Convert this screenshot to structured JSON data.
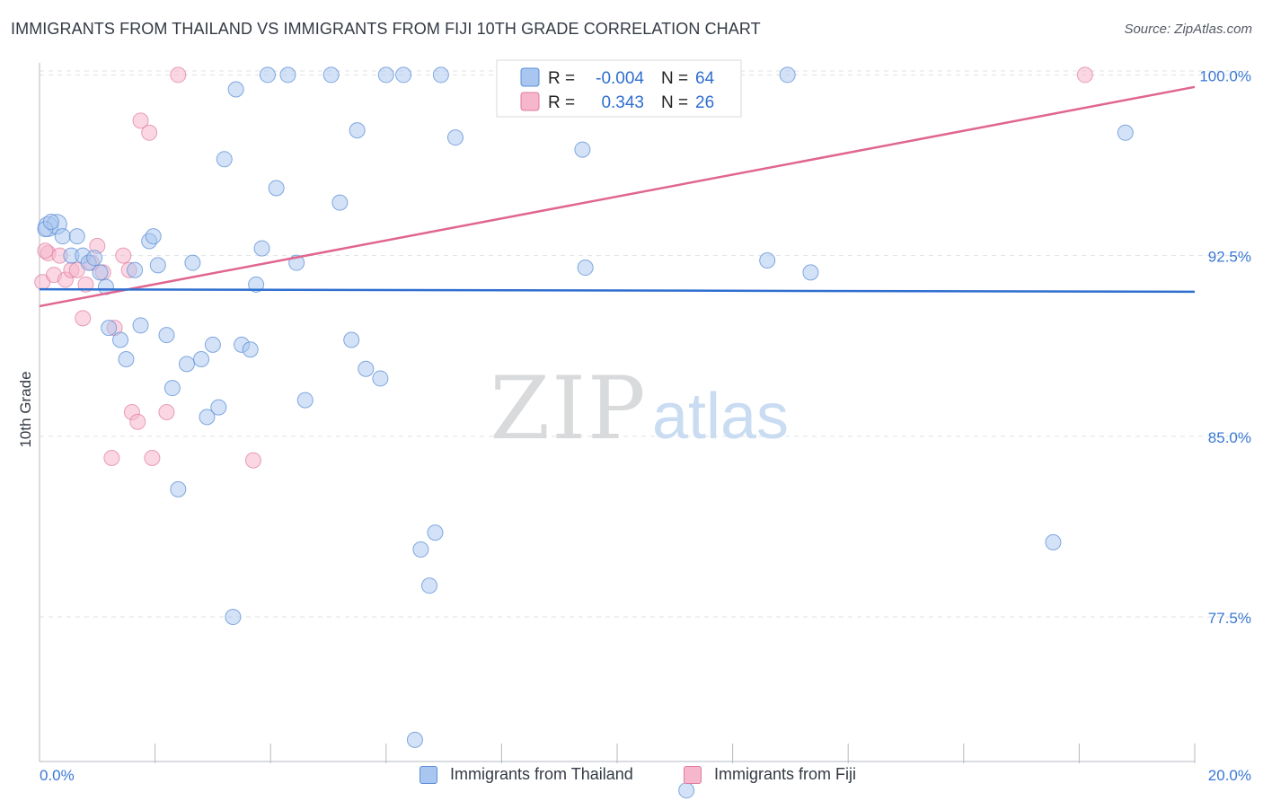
{
  "header": {
    "title": "IMMIGRANTS FROM THAILAND VS IMMIGRANTS FROM FIJI 10TH GRADE CORRELATION CHART",
    "source": "Source: ZipAtlas.com"
  },
  "watermark": {
    "zip": "ZIP",
    "atlas": "atlas"
  },
  "colors": {
    "thailand_fill": "#a9c6f0",
    "thailand_stroke": "#5b8fd6",
    "thailand_line": "#2f6fcf",
    "fiji_fill": "#f6b6cb",
    "fiji_stroke": "#e07aa0",
    "fiji_line": "#e0658f",
    "axis_label": "#3a78d4",
    "grid": "#dde1e6"
  },
  "legend_stats": {
    "r_label": "R =",
    "n_label": "N =",
    "thailand_r": "-0.004",
    "thailand_n": "64",
    "fiji_r": "0.343",
    "fiji_n": "26"
  },
  "chart_data": {
    "type": "scatter",
    "title": "IMMIGRANTS FROM THAILAND VS IMMIGRANTS FROM FIJI 10TH GRADE CORRELATION CHART",
    "xlabel": "",
    "ylabel": "10th Grade",
    "xlim": [
      0,
      20
    ],
    "ylim": [
      71.5,
      100.5
    ],
    "x_tick_labels": [
      "0.0%",
      "20.0%"
    ],
    "y_ticks": [
      77.5,
      85.0,
      92.5,
      100.0
    ],
    "y_tick_labels": [
      "77.5%",
      "85.0%",
      "92.5%",
      "100.0%"
    ],
    "grid": true,
    "legend_position": "top-center",
    "series": [
      {
        "name": "Immigrants from Thailand",
        "trend": {
          "x": [
            0,
            20
          ],
          "y": [
            91.1,
            91.0
          ]
        },
        "points": [
          {
            "x": 0.15,
            "y": 93.7
          },
          {
            "x": 0.3,
            "y": 93.8
          },
          {
            "x": 0.4,
            "y": 93.3
          },
          {
            "x": 0.55,
            "y": 92.5
          },
          {
            "x": 0.65,
            "y": 93.3
          },
          {
            "x": 0.75,
            "y": 92.5
          },
          {
            "x": 0.85,
            "y": 92.2
          },
          {
            "x": 0.95,
            "y": 92.4
          },
          {
            "x": 1.05,
            "y": 91.8
          },
          {
            "x": 1.15,
            "y": 91.2
          },
          {
            "x": 1.2,
            "y": 89.5
          },
          {
            "x": 1.4,
            "y": 89.0
          },
          {
            "x": 1.5,
            "y": 88.2
          },
          {
            "x": 1.65,
            "y": 91.9
          },
          {
            "x": 1.75,
            "y": 89.6
          },
          {
            "x": 1.9,
            "y": 93.1
          },
          {
            "x": 1.97,
            "y": 93.3
          },
          {
            "x": 2.05,
            "y": 92.1
          },
          {
            "x": 2.2,
            "y": 89.2
          },
          {
            "x": 2.3,
            "y": 87.0
          },
          {
            "x": 2.4,
            "y": 82.8
          },
          {
            "x": 2.55,
            "y": 88.0
          },
          {
            "x": 2.65,
            "y": 92.2
          },
          {
            "x": 2.8,
            "y": 88.2
          },
          {
            "x": 2.9,
            "y": 85.8
          },
          {
            "x": 3.0,
            "y": 88.8
          },
          {
            "x": 3.1,
            "y": 86.2
          },
          {
            "x": 3.2,
            "y": 96.5
          },
          {
            "x": 3.35,
            "y": 77.5
          },
          {
            "x": 3.4,
            "y": 99.4
          },
          {
            "x": 3.5,
            "y": 88.8
          },
          {
            "x": 3.65,
            "y": 88.6
          },
          {
            "x": 3.75,
            "y": 91.3
          },
          {
            "x": 3.85,
            "y": 92.8
          },
          {
            "x": 3.95,
            "y": 100.0
          },
          {
            "x": 4.1,
            "y": 95.3
          },
          {
            "x": 4.3,
            "y": 100.0
          },
          {
            "x": 4.45,
            "y": 92.2
          },
          {
            "x": 4.6,
            "y": 86.5
          },
          {
            "x": 5.05,
            "y": 100.0
          },
          {
            "x": 5.2,
            "y": 94.7
          },
          {
            "x": 5.4,
            "y": 89.0
          },
          {
            "x": 5.5,
            "y": 97.7
          },
          {
            "x": 5.65,
            "y": 87.8
          },
          {
            "x": 5.9,
            "y": 87.4
          },
          {
            "x": 6.0,
            "y": 100.0
          },
          {
            "x": 6.3,
            "y": 100.0
          },
          {
            "x": 6.5,
            "y": 72.4
          },
          {
            "x": 6.6,
            "y": 80.3
          },
          {
            "x": 6.75,
            "y": 78.8
          },
          {
            "x": 6.85,
            "y": 81.0
          },
          {
            "x": 6.95,
            "y": 100.0
          },
          {
            "x": 7.2,
            "y": 97.4
          },
          {
            "x": 9.4,
            "y": 96.9
          },
          {
            "x": 9.45,
            "y": 92.0
          },
          {
            "x": 11.5,
            "y": 100.0
          },
          {
            "x": 11.2,
            "y": 70.3
          },
          {
            "x": 12.6,
            "y": 92.3
          },
          {
            "x": 12.95,
            "y": 100.0
          },
          {
            "x": 13.35,
            "y": 91.8
          },
          {
            "x": 17.55,
            "y": 80.6
          },
          {
            "x": 18.8,
            "y": 97.6
          },
          {
            "x": 0.1,
            "y": 93.6
          },
          {
            "x": 0.2,
            "y": 93.9
          }
        ]
      },
      {
        "name": "Immigrants from Fiji",
        "trend": {
          "x": [
            0,
            20
          ],
          "y": [
            90.4,
            99.5
          ]
        },
        "points": [
          {
            "x": 0.05,
            "y": 91.4
          },
          {
            "x": 0.15,
            "y": 92.6
          },
          {
            "x": 0.25,
            "y": 91.7
          },
          {
            "x": 0.35,
            "y": 92.5
          },
          {
            "x": 0.45,
            "y": 91.5
          },
          {
            "x": 0.55,
            "y": 91.9
          },
          {
            "x": 0.65,
            "y": 91.9
          },
          {
            "x": 0.75,
            "y": 89.9
          },
          {
            "x": 0.8,
            "y": 91.3
          },
          {
            "x": 0.9,
            "y": 92.2
          },
          {
            "x": 1.0,
            "y": 92.9
          },
          {
            "x": 1.1,
            "y": 91.8
          },
          {
            "x": 1.25,
            "y": 84.1
          },
          {
            "x": 1.3,
            "y": 89.5
          },
          {
            "x": 1.45,
            "y": 92.5
          },
          {
            "x": 1.55,
            "y": 91.9
          },
          {
            "x": 1.6,
            "y": 86.0
          },
          {
            "x": 1.7,
            "y": 85.6
          },
          {
            "x": 1.75,
            "y": 98.1
          },
          {
            "x": 1.9,
            "y": 97.6
          },
          {
            "x": 1.95,
            "y": 84.1
          },
          {
            "x": 2.2,
            "y": 86.0
          },
          {
            "x": 2.4,
            "y": 100.0
          },
          {
            "x": 3.7,
            "y": 84.0
          },
          {
            "x": 18.1,
            "y": 100.0
          },
          {
            "x": 0.1,
            "y": 92.7
          }
        ]
      }
    ]
  },
  "legend_bottom": [
    {
      "label": "Immigrants from Thailand"
    },
    {
      "label": "Immigrants from Fiji"
    }
  ]
}
